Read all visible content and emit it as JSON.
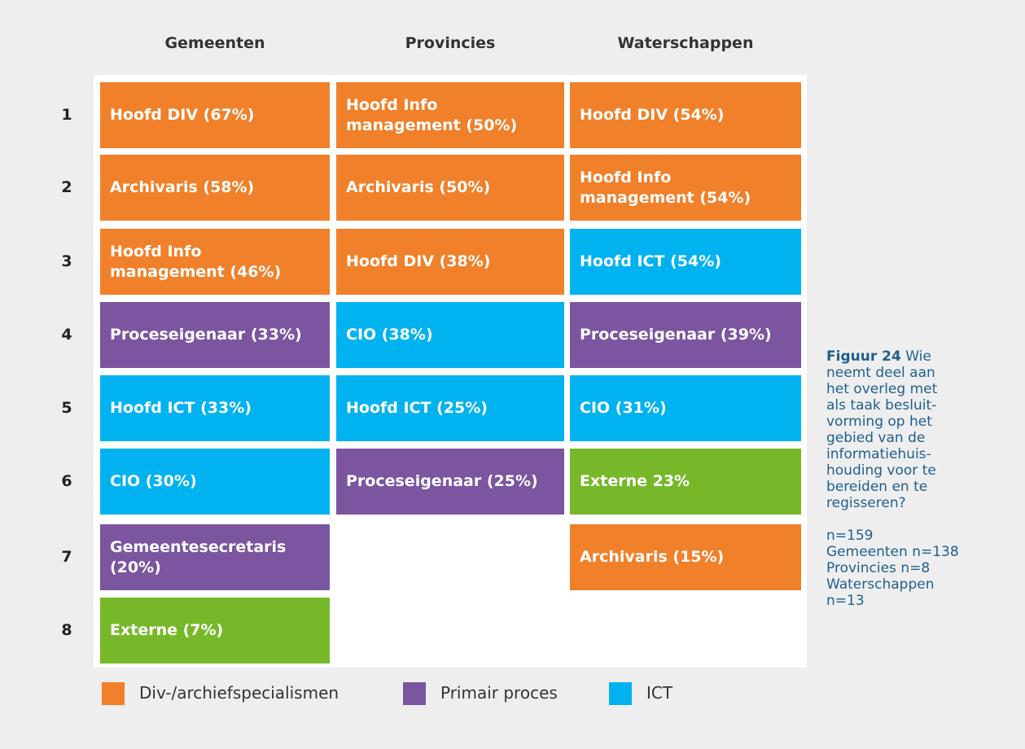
{
  "columns": [
    {
      "header": "Gemeenten",
      "cells": [
        {
          "lines": [
            "Hoofd DIV (67%)"
          ],
          "color": "#f0802a"
        },
        {
          "lines": [
            "Archivaris (58%)"
          ],
          "color": "#f0802a"
        },
        {
          "lines": [
            "Hoofd Info",
            "management (46%)"
          ],
          "color": "#f0802a"
        },
        {
          "lines": [
            "Proceseigenaar (33%)"
          ],
          "color": "#7b55a0"
        },
        {
          "lines": [
            "Hoofd ICT (33%)"
          ],
          "color": "#00b2ef"
        },
        {
          "lines": [
            "CIO (30%)"
          ],
          "color": "#00b2ef"
        },
        {
          "lines": [
            "Gemeentesecretaris",
            "(20%)"
          ],
          "color": "#7b55a0"
        },
        {
          "lines": [
            "Externe (7%)"
          ],
          "color": "#77b82a"
        }
      ]
    },
    {
      "header": "Provincies",
      "cells": [
        {
          "lines": [
            "Hoofd Info",
            "management (50%)"
          ],
          "color": "#f0802a"
        },
        {
          "lines": [
            "Archivaris (50%)"
          ],
          "color": "#f0802a"
        },
        {
          "lines": [
            "Hoofd DIV (38%)"
          ],
          "color": "#f0802a"
        },
        {
          "lines": [
            "CIO (38%)"
          ],
          "color": "#00b2ef"
        },
        {
          "lines": [
            "Hoofd ICT (25%)"
          ],
          "color": "#00b2ef"
        },
        {
          "lines": [
            "Proceseigenaar (25%)"
          ],
          "color": "#7b55a0"
        }
      ]
    },
    {
      "header": "Waterschappen",
      "cells": [
        {
          "lines": [
            "Hoofd DIV (54%)"
          ],
          "color": "#f0802a"
        },
        {
          "lines": [
            "Hoofd Info",
            "management (54%)"
          ],
          "color": "#f0802a"
        },
        {
          "lines": [
            "Hoofd ICT (54%)"
          ],
          "color": "#00b2ef"
        },
        {
          "lines": [
            "Proceseigenaar (39%)"
          ],
          "color": "#7b55a0"
        },
        {
          "lines": [
            "CIO (31%)"
          ],
          "color": "#00b2ef"
        },
        {
          "lines": [
            "Externe 23%"
          ],
          "color": "#77b82a"
        },
        {
          "lines": [
            "Archivaris (15%)"
          ],
          "color": "#f0802a"
        }
      ]
    }
  ],
  "rows": [
    "1",
    "2",
    "3",
    "4",
    "5",
    "6",
    "7",
    "8"
  ],
  "legend": [
    {
      "label": "Div-/archiefspecialismen",
      "color": "#f0802a"
    },
    {
      "label": "Primair proces",
      "color": "#7b55a0"
    },
    {
      "label": "ICT",
      "color": "#00b2ef"
    }
  ],
  "caption": {
    "label": "Figuur 24",
    "lines": [
      "Wie",
      "neemt deel aan",
      "het overleg met",
      "als taak besluit-",
      "vorming op het",
      "gebied van de",
      "informatiehuis-",
      "houding voor te",
      "bereiden en te",
      "regisseren?"
    ],
    "stats": [
      "n=159",
      "Gemeenten n=138",
      "Provincies n=8",
      "Waterschappen",
      "n=13"
    ]
  }
}
